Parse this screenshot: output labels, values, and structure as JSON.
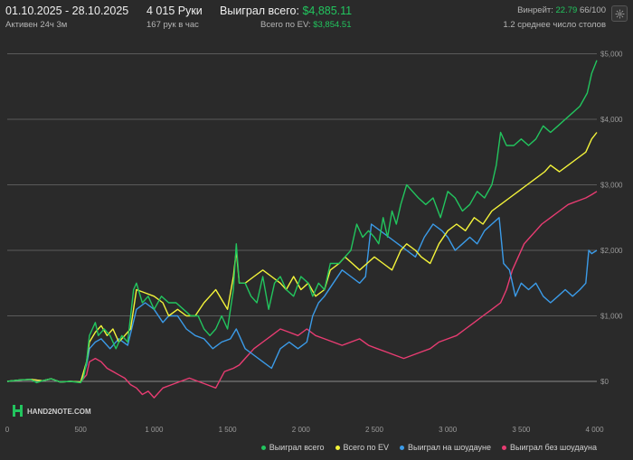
{
  "header": {
    "date_range": "01.10.2025 - 28.10.2025",
    "active_time": "Активен 24ч 3м",
    "hands": "4 015 Руки",
    "hands_per_hour": "167 рук в час",
    "won_total_label": "Выиграл всего:",
    "won_total_value": "$4,885.11",
    "ev_total_label": "Всего по EV:",
    "ev_total_value": "$3,854.51",
    "winrate_label": "Винрейт:",
    "winrate_value": "22.79",
    "winrate_suffix": "66/100",
    "avg_tables": "1.2 среднее число столов"
  },
  "logo_text": "HAND2NOTE.COM",
  "colors": {
    "won": "#22c55e",
    "ev": "#f4f43a",
    "showdown": "#3b9be8",
    "non_showdown": "#e83c72",
    "grid": "#5a5a5a",
    "zero_line": "#8a8a8a"
  },
  "chart_data": {
    "type": "line",
    "xlim": [
      0,
      4015
    ],
    "ylim": [
      -200,
      5200
    ],
    "x_ticks": [
      0,
      500,
      1000,
      1500,
      2000,
      2500,
      3000,
      3500,
      4000
    ],
    "x_tick_labels": [
      "0",
      "500",
      "1 000",
      "1 500",
      "2 000",
      "2 500",
      "3 000",
      "3 500",
      "4 000"
    ],
    "y_ticks": [
      0,
      1000,
      2000,
      3000,
      4000,
      5000
    ],
    "y_tick_labels": [
      "$0",
      "$1,000",
      "$2,000",
      "$3,000",
      "$4,000",
      "$5,000"
    ],
    "grid": true,
    "legend_position": "bottom-right",
    "series": [
      {
        "name": "Выиграл всего",
        "color_key": "won",
        "x": [
          0,
          80,
          160,
          200,
          240,
          300,
          360,
          430,
          500,
          520,
          540,
          560,
          580,
          600,
          620,
          660,
          700,
          740,
          780,
          820,
          860,
          880,
          920,
          960,
          1000,
          1050,
          1100,
          1150,
          1200,
          1250,
          1300,
          1340,
          1380,
          1420,
          1460,
          1500,
          1540,
          1560,
          1580,
          1620,
          1660,
          1700,
          1740,
          1780,
          1820,
          1860,
          1900,
          1950,
          2000,
          2050,
          2080,
          2120,
          2160,
          2200,
          2260,
          2300,
          2340,
          2380,
          2420,
          2460,
          2500,
          2530,
          2560,
          2590,
          2620,
          2650,
          2680,
          2720,
          2760,
          2800,
          2850,
          2900,
          2950,
          3000,
          3050,
          3100,
          3150,
          3200,
          3250,
          3300,
          3330,
          3360,
          3400,
          3450,
          3500,
          3550,
          3600,
          3650,
          3700,
          3750,
          3800,
          3850,
          3900,
          3950,
          3980,
          4015
        ],
        "y": [
          0,
          20,
          30,
          -20,
          10,
          40,
          -10,
          0,
          -20,
          60,
          300,
          700,
          800,
          900,
          700,
          800,
          700,
          500,
          700,
          600,
          1400,
          1500,
          1200,
          1300,
          1100,
          1300,
          1200,
          1200,
          1100,
          1000,
          1000,
          800,
          700,
          800,
          1000,
          800,
          1400,
          2100,
          1500,
          1500,
          1300,
          1200,
          1600,
          1100,
          1500,
          1600,
          1400,
          1300,
          1600,
          1500,
          1300,
          1500,
          1400,
          1800,
          1800,
          1900,
          2000,
          2400,
          2200,
          2300,
          2200,
          2100,
          2500,
          2200,
          2600,
          2400,
          2700,
          3000,
          2900,
          2800,
          2700,
          2800,
          2500,
          2900,
          2800,
          2600,
          2700,
          2900,
          2800,
          3000,
          3300,
          3800,
          3600,
          3600,
          3700,
          3600,
          3700,
          3900,
          3800,
          3900,
          4000,
          4100,
          4200,
          4400,
          4700,
          4900
        ]
      },
      {
        "name": "Всего по EV",
        "color_key": "ev",
        "x": [
          0,
          80,
          160,
          240,
          300,
          360,
          430,
          500,
          540,
          560,
          600,
          640,
          680,
          720,
          760,
          800,
          840,
          880,
          940,
          1000,
          1060,
          1100,
          1160,
          1220,
          1280,
          1340,
          1380,
          1420,
          1460,
          1500,
          1540,
          1560,
          1580,
          1620,
          1680,
          1740,
          1800,
          1860,
          1900,
          1950,
          2000,
          2050,
          2100,
          2160,
          2200,
          2260,
          2300,
          2350,
          2400,
          2450,
          2500,
          2560,
          2620,
          2680,
          2720,
          2780,
          2820,
          2880,
          2940,
          3000,
          3060,
          3120,
          3180,
          3240,
          3300,
          3360,
          3420,
          3480,
          3540,
          3600,
          3660,
          3700,
          3760,
          3820,
          3880,
          3940,
          3980,
          4015
        ],
        "y": [
          0,
          20,
          30,
          10,
          40,
          -10,
          0,
          -10,
          300,
          600,
          750,
          850,
          700,
          800,
          600,
          700,
          800,
          1400,
          1350,
          1300,
          1200,
          1000,
          1100,
          1000,
          1000,
          1200,
          1300,
          1400,
          1250,
          1100,
          1600,
          2000,
          1500,
          1500,
          1600,
          1700,
          1600,
          1500,
          1400,
          1600,
          1400,
          1500,
          1300,
          1400,
          1700,
          1800,
          1900,
          1800,
          1700,
          1800,
          1900,
          1800,
          1700,
          2000,
          2100,
          2000,
          1900,
          1800,
          2100,
          2300,
          2400,
          2300,
          2500,
          2400,
          2600,
          2700,
          2800,
          2900,
          3000,
          3100,
          3200,
          3300,
          3200,
          3300,
          3400,
          3500,
          3700,
          3800
        ]
      },
      {
        "name": "Выиграл на шоудауне",
        "color_key": "showdown",
        "x": [
          0,
          80,
          160,
          240,
          300,
          360,
          430,
          500,
          540,
          560,
          600,
          640,
          700,
          760,
          820,
          880,
          940,
          1000,
          1060,
          1100,
          1160,
          1220,
          1280,
          1340,
          1400,
          1460,
          1520,
          1560,
          1580,
          1620,
          1680,
          1740,
          1800,
          1860,
          1920,
          1980,
          2040,
          2080,
          2120,
          2160,
          2220,
          2280,
          2340,
          2400,
          2440,
          2480,
          2540,
          2600,
          2660,
          2720,
          2780,
          2840,
          2900,
          2960,
          3000,
          3050,
          3100,
          3150,
          3200,
          3250,
          3300,
          3350,
          3380,
          3420,
          3460,
          3500,
          3550,
          3600,
          3650,
          3700,
          3750,
          3800,
          3850,
          3900,
          3940,
          3960,
          3980,
          4015
        ],
        "y": [
          0,
          20,
          30,
          10,
          40,
          -10,
          0,
          -10,
          250,
          500,
          600,
          650,
          500,
          650,
          550,
          1100,
          1200,
          1100,
          900,
          1000,
          1000,
          800,
          700,
          650,
          500,
          600,
          650,
          800,
          700,
          500,
          400,
          300,
          200,
          500,
          600,
          500,
          600,
          1000,
          1200,
          1300,
          1500,
          1700,
          1600,
          1500,
          1600,
          2400,
          2300,
          2200,
          2100,
          2000,
          1900,
          2200,
          2400,
          2300,
          2200,
          2000,
          2100,
          2200,
          2100,
          2300,
          2400,
          2500,
          1800,
          1700,
          1300,
          1500,
          1400,
          1500,
          1300,
          1200,
          1300,
          1400,
          1300,
          1400,
          1500,
          2000,
          1950,
          2000
        ]
      },
      {
        "name": "Выиграл без шоудауна",
        "color_key": "non_showdown",
        "x": [
          0,
          80,
          160,
          240,
          300,
          360,
          430,
          500,
          540,
          560,
          600,
          640,
          680,
          720,
          760,
          800,
          840,
          880,
          920,
          960,
          1000,
          1060,
          1120,
          1180,
          1240,
          1300,
          1360,
          1420,
          1480,
          1540,
          1580,
          1620,
          1680,
          1740,
          1800,
          1860,
          1920,
          1980,
          2040,
          2100,
          2160,
          2220,
          2280,
          2340,
          2400,
          2460,
          2520,
          2580,
          2640,
          2700,
          2760,
          2820,
          2880,
          2940,
          3000,
          3060,
          3120,
          3180,
          3240,
          3300,
          3360,
          3400,
          3440,
          3480,
          3520,
          3560,
          3600,
          3640,
          3700,
          3760,
          3820,
          3880,
          3940,
          3980,
          4015
        ],
        "y": [
          0,
          20,
          30,
          10,
          40,
          -10,
          0,
          -10,
          100,
          300,
          350,
          300,
          200,
          150,
          100,
          50,
          -50,
          -100,
          -200,
          -150,
          -250,
          -100,
          -50,
          0,
          50,
          0,
          -50,
          -100,
          150,
          200,
          250,
          350,
          500,
          600,
          700,
          800,
          750,
          700,
          800,
          700,
          650,
          600,
          550,
          600,
          650,
          550,
          500,
          450,
          400,
          350,
          400,
          450,
          500,
          600,
          650,
          700,
          800,
          900,
          1000,
          1100,
          1200,
          1400,
          1700,
          1900,
          2100,
          2200,
          2300,
          2400,
          2500,
          2600,
          2700,
          2750,
          2800,
          2850,
          2900
        ]
      }
    ]
  }
}
